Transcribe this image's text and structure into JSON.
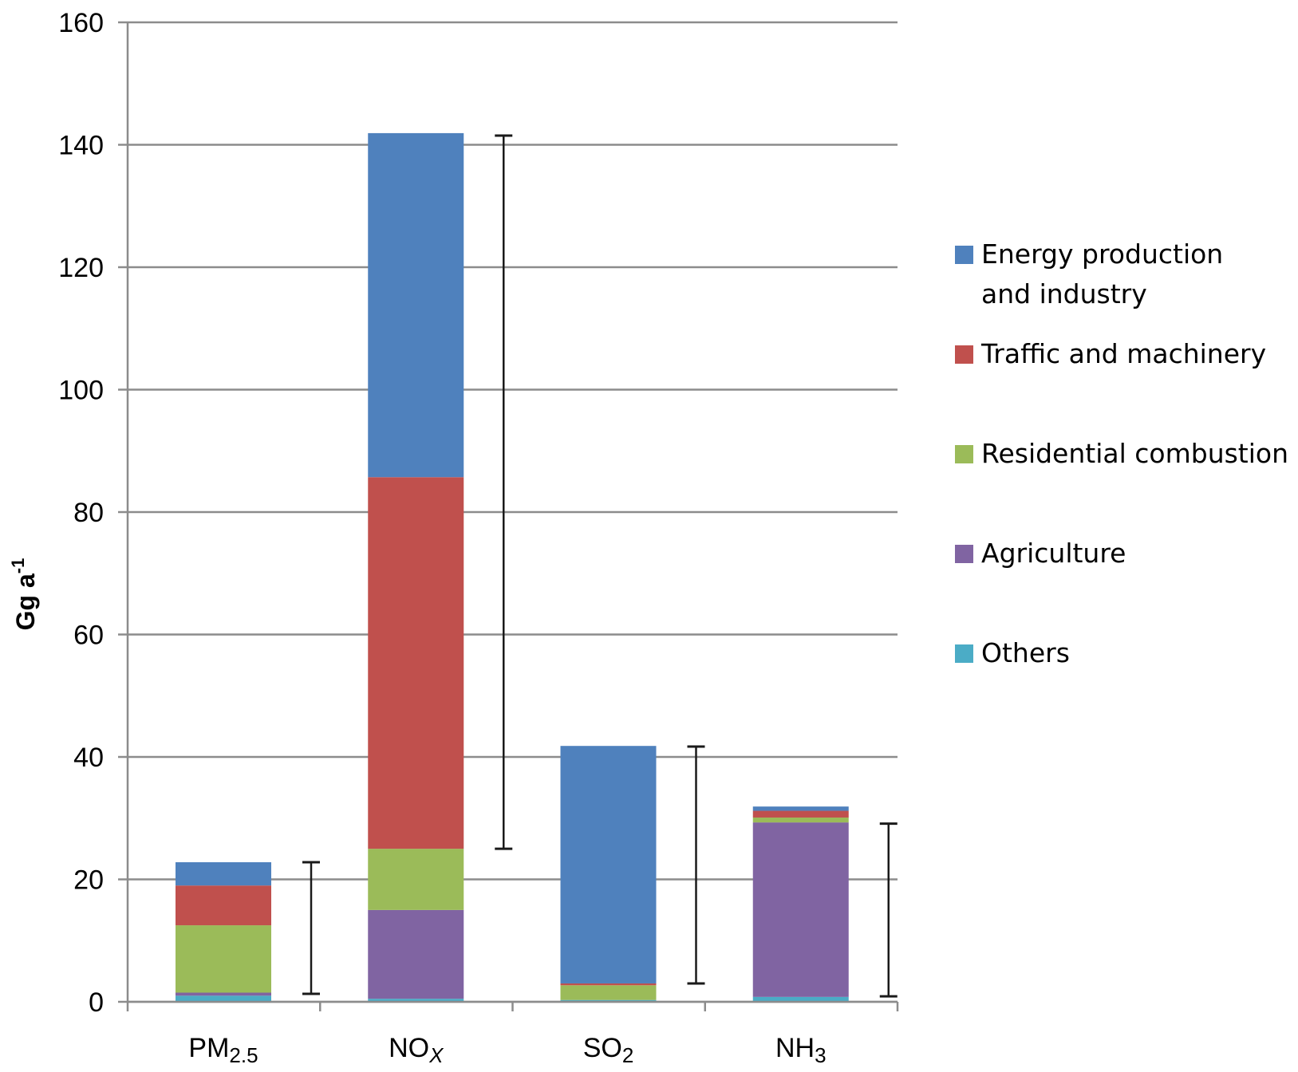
{
  "chart_data": {
    "type": "bar",
    "stacked": true,
    "title": "",
    "xlabel": "",
    "ylabel": "Gg a",
    "ylabel_superscript": "-1",
    "ylim": [
      0,
      160
    ],
    "yticks": [
      0,
      20,
      40,
      60,
      80,
      100,
      120,
      140,
      160
    ],
    "grid": true,
    "legend_position": "right",
    "categories": [
      {
        "base": "PM",
        "sub": "2.5",
        "sub_italic": false
      },
      {
        "base": "NO",
        "sub": "X",
        "sub_italic": true
      },
      {
        "base": "SO",
        "sub": "2",
        "sub_italic": false
      },
      {
        "base": "NH",
        "sub": "3",
        "sub_italic": false
      }
    ],
    "series": [
      {
        "name": "Others",
        "color": "#4BACC6",
        "values": [
          1.0,
          0.5,
          0.3,
          0.8
        ]
      },
      {
        "name": "Agriculture",
        "color": "#8064A2",
        "values": [
          0.5,
          14.5,
          0.0,
          28.5
        ]
      },
      {
        "name": "Residential combustion",
        "color": "#9BBB59",
        "values": [
          11.0,
          10.0,
          2.4,
          0.8
        ]
      },
      {
        "name": "Traffic and machinery",
        "color": "#C0504D",
        "values": [
          6.5,
          60.7,
          0.3,
          1.1
        ]
      },
      {
        "name": "Energy production and industry",
        "color": "#4F81BD",
        "values": [
          3.8,
          56.2,
          38.8,
          0.7
        ]
      }
    ],
    "error_bars": [
      {
        "low": 1.3,
        "high": 22.8
      },
      {
        "low": 25.0,
        "high": 141.5
      },
      {
        "low": 3.0,
        "high": 41.7
      },
      {
        "low": 0.9,
        "high": 29.1
      }
    ],
    "legend": [
      {
        "lines": [
          "Energy production",
          "and industry"
        ],
        "color": "#4F81BD"
      },
      {
        "lines": [
          "Traffic and machinery"
        ],
        "color": "#C0504D"
      },
      {
        "lines": [
          "Residential combustion"
        ],
        "color": "#9BBB59"
      },
      {
        "lines": [
          "Agriculture"
        ],
        "color": "#8064A2"
      },
      {
        "lines": [
          "Others"
        ],
        "color": "#4BACC6"
      }
    ]
  }
}
